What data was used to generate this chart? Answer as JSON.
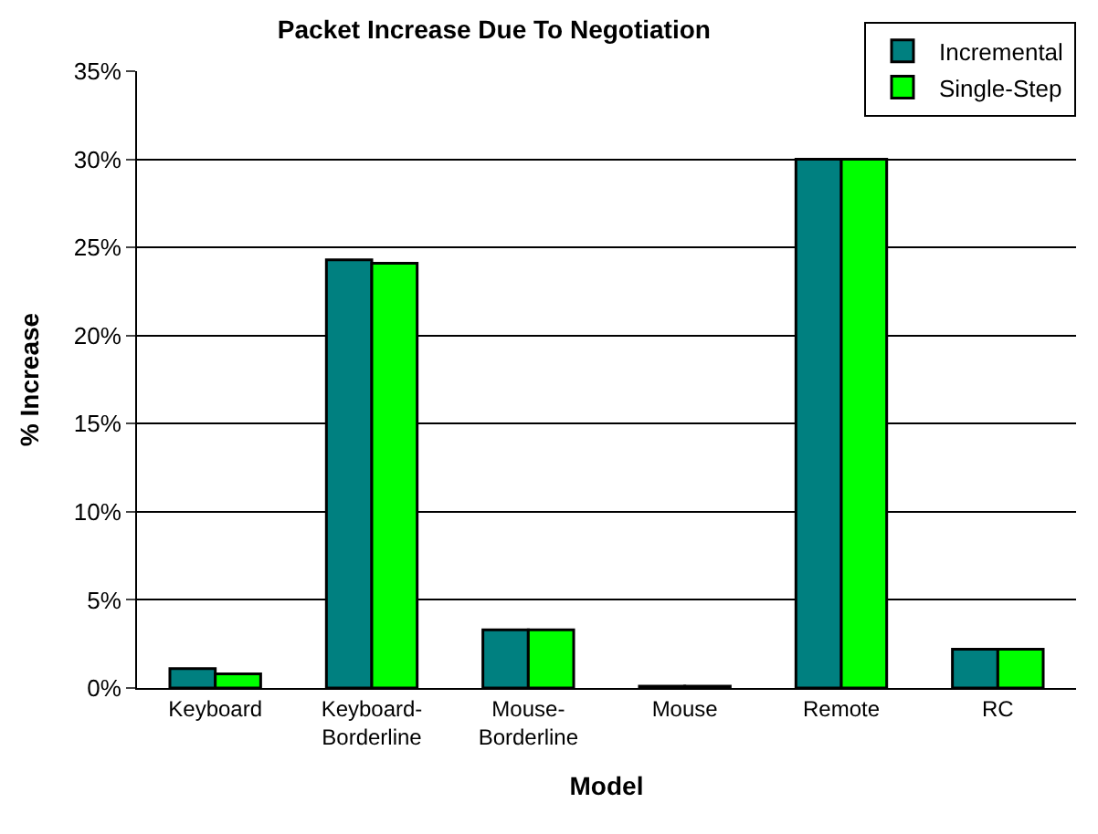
{
  "chart_data": {
    "type": "bar",
    "title": "Packet Increase Due To Negotiation",
    "xlabel": "Model",
    "ylabel": "% Increase",
    "categories": [
      "Keyboard",
      "Keyboard-\nBorderline",
      "Mouse-\nBorderline",
      "Mouse",
      "Remote",
      "RC"
    ],
    "series": [
      {
        "name": "Incremental",
        "color": "#008080",
        "values": [
          1.1,
          24.3,
          3.3,
          0.1,
          30,
          2.2
        ]
      },
      {
        "name": "Single-Step",
        "color": "#00ff00",
        "values": [
          0.8,
          24.1,
          3.3,
          0.1,
          30,
          2.2
        ]
      }
    ],
    "ylim": [
      0,
      35
    ],
    "yticks": [
      {
        "value": 0,
        "label": "0%"
      },
      {
        "value": 5,
        "label": "5%"
      },
      {
        "value": 10,
        "label": "10%"
      },
      {
        "value": 15,
        "label": "15%"
      },
      {
        "value": 20,
        "label": "20%"
      },
      {
        "value": 25,
        "label": "25%"
      },
      {
        "value": 30,
        "label": "30%"
      },
      {
        "value": 35,
        "label": "35%"
      }
    ],
    "grid": "y",
    "legend": "top right"
  }
}
